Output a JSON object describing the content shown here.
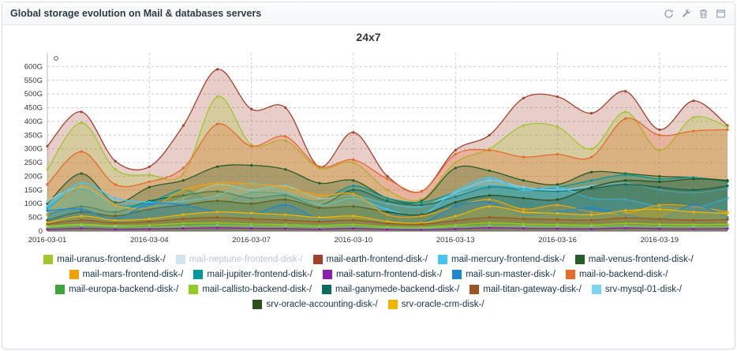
{
  "panel": {
    "title": "Global storage evolution on Mail & databases servers",
    "actions": [
      "refresh-icon",
      "wrench-icon",
      "trash-icon",
      "window-icon"
    ]
  },
  "chart_data": {
    "type": "area",
    "title": "24x7",
    "xlabel": "",
    "ylabel": "",
    "ylim": [
      0,
      650
    ],
    "grid": true,
    "legend_position": "bottom",
    "num_points": 21,
    "x_start": "2016-03-01",
    "x_end": "2016-03-21",
    "y_ticks": [
      "0",
      "50G",
      "100G",
      "150G",
      "200G",
      "250G",
      "300G",
      "350G",
      "400G",
      "450G",
      "500G",
      "550G",
      "600G"
    ],
    "x_ticks": [
      {
        "day": 0,
        "label": "2016-03-01"
      },
      {
        "day": 3,
        "label": "2016-03-04"
      },
      {
        "day": 6,
        "label": "2016-03-07"
      },
      {
        "day": 9,
        "label": "2016-03-10"
      },
      {
        "day": 12,
        "label": "2016-03-13"
      },
      {
        "day": 15,
        "label": "2016-03-16"
      },
      {
        "day": 18,
        "label": "2016-03-19"
      }
    ],
    "series": [
      {
        "name": "mail-uranus-frontend-disk-/",
        "color": "#a2c62c",
        "dimmed": false,
        "values": [
          225,
          395,
          225,
          205,
          210,
          490,
          315,
          330,
          230,
          250,
          150,
          115,
          250,
          300,
          385,
          380,
          300,
          435,
          295,
          415,
          380
        ]
      },
      {
        "name": "mail-neptune-frontend-disk-/",
        "color": "#cfe6ec",
        "dimmed": true,
        "values": [
          15,
          20,
          16,
          14,
          18,
          22,
          19,
          18,
          15,
          17,
          12,
          10,
          16,
          20,
          18,
          17,
          16,
          19,
          17,
          16,
          17
        ]
      },
      {
        "name": "mail-earth-frontend-disk-/",
        "color": "#a3402c",
        "dimmed": false,
        "values": [
          310,
          435,
          255,
          235,
          385,
          590,
          445,
          450,
          235,
          360,
          200,
          145,
          295,
          350,
          485,
          490,
          430,
          510,
          370,
          475,
          385
        ]
      },
      {
        "name": "mail-mercury-frontend-disk-/",
        "color": "#45c6f0",
        "dimmed": false,
        "values": [
          90,
          175,
          120,
          105,
          110,
          130,
          175,
          140,
          95,
          120,
          80,
          60,
          145,
          195,
          150,
          160,
          120,
          115,
          90,
          85,
          120
        ]
      },
      {
        "name": "mail-venus-frontend-disk-/",
        "color": "#275c2b",
        "dimmed": false,
        "values": [
          100,
          210,
          105,
          160,
          185,
          235,
          240,
          225,
          175,
          185,
          120,
          110,
          230,
          220,
          185,
          170,
          215,
          210,
          200,
          195,
          185
        ]
      },
      {
        "name": "mail-mars-frontend-disk-/",
        "color": "#efa00b",
        "dimmed": false,
        "values": [
          60,
          165,
          95,
          85,
          150,
          175,
          172,
          160,
          130,
          135,
          60,
          55,
          90,
          115,
          80,
          95,
          70,
          65,
          95,
          90,
          70
        ]
      },
      {
        "name": "mail-jupiter-frontend-disk-/",
        "color": "#00989a",
        "dimmed": false,
        "values": [
          85,
          155,
          95,
          105,
          150,
          100,
          140,
          135,
          110,
          165,
          120,
          105,
          140,
          165,
          155,
          160,
          185,
          205,
          190,
          195,
          180
        ]
      },
      {
        "name": "mail-saturn-frontend-disk-/",
        "color": "#8a1fae",
        "dimmed": false,
        "values": [
          6,
          10,
          7,
          8,
          10,
          12,
          10,
          9,
          7,
          10,
          6,
          5,
          8,
          12,
          10,
          9,
          8,
          11,
          9,
          8,
          9
        ]
      },
      {
        "name": "mail-sun-master-disk-/",
        "color": "#1d88cf",
        "dimmed": false,
        "values": [
          75,
          80,
          45,
          100,
          95,
          70,
          60,
          95,
          45,
          40,
          35,
          30,
          90,
          105,
          60,
          70,
          85,
          60,
          45,
          95,
          50
        ]
      },
      {
        "name": "mail-io-backend-disk-/",
        "color": "#e76a2b",
        "dimmed": false,
        "values": [
          170,
          290,
          170,
          180,
          230,
          390,
          310,
          345,
          235,
          260,
          190,
          145,
          280,
          295,
          270,
          280,
          270,
          410,
          350,
          365,
          370
        ]
      },
      {
        "name": "mail-europa-backend-disk-/",
        "color": "#3fa33c",
        "dimmed": false,
        "values": [
          12,
          18,
          14,
          15,
          20,
          24,
          20,
          18,
          16,
          18,
          12,
          10,
          16,
          22,
          18,
          17,
          16,
          20,
          18,
          17,
          18
        ]
      },
      {
        "name": "mail-callisto-backend-disk-/",
        "color": "#8fcc1f",
        "dimmed": false,
        "values": [
          18,
          25,
          20,
          22,
          28,
          30,
          26,
          24,
          20,
          24,
          16,
          14,
          22,
          30,
          26,
          24,
          22,
          28,
          25,
          24,
          25
        ]
      },
      {
        "name": "mail-ganymede-backend-disk-/",
        "color": "#0b6b5d",
        "dimmed": false,
        "values": [
          60,
          90,
          70,
          110,
          130,
          145,
          120,
          130,
          95,
          150,
          110,
          95,
          125,
          160,
          150,
          145,
          155,
          170,
          160,
          150,
          165
        ]
      },
      {
        "name": "mail-titan-gateway-disk-/",
        "color": "#9c5520",
        "dimmed": false,
        "values": [
          25,
          40,
          30,
          35,
          45,
          50,
          45,
          40,
          35,
          40,
          28,
          25,
          38,
          50,
          45,
          42,
          40,
          48,
          44,
          40,
          42
        ]
      },
      {
        "name": "srv-mysql-01-disk-/",
        "color": "#7cd4ef",
        "dimmed": false,
        "values": [
          110,
          160,
          95,
          85,
          120,
          170,
          150,
          165,
          120,
          130,
          100,
          90,
          140,
          185,
          160,
          150,
          165,
          175,
          150,
          140,
          155
        ]
      },
      {
        "name": "srv-oracle-accounting-disk-/",
        "color": "#2c4f1e",
        "dimmed": false,
        "values": [
          40,
          70,
          55,
          80,
          95,
          110,
          100,
          115,
          85,
          90,
          70,
          60,
          105,
          130,
          120,
          115,
          160,
          185,
          180,
          190,
          185
        ]
      },
      {
        "name": "srv-oracle-crm-disk-/",
        "color": "#f0b400",
        "dimmed": false,
        "values": [
          30,
          55,
          40,
          45,
          60,
          70,
          65,
          60,
          50,
          55,
          35,
          30,
          55,
          90,
          70,
          65,
          60,
          75,
          80,
          70,
          65
        ]
      }
    ]
  }
}
